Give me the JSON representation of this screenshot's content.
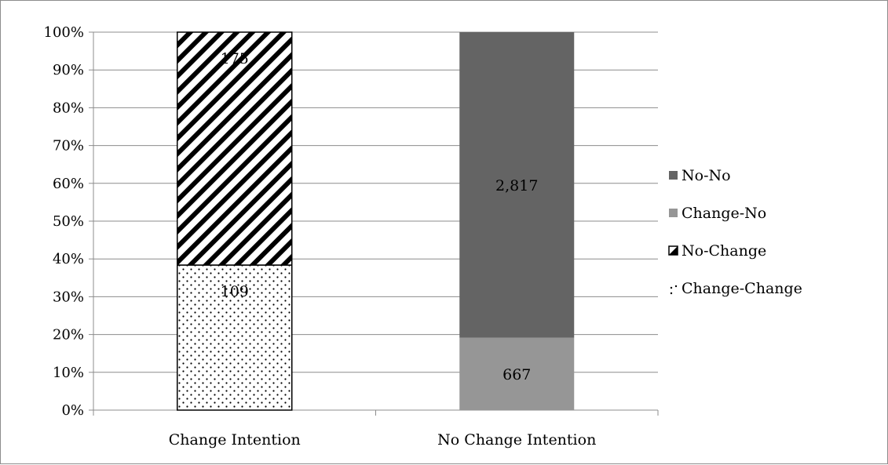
{
  "chart_data": {
    "type": "bar",
    "stacked": "percent",
    "categories": [
      "Change Intention",
      "No Change Intention"
    ],
    "series": [
      {
        "name": "Change-Change",
        "values": [
          109,
          0
        ],
        "labels": [
          "109",
          ""
        ],
        "color": "#ffffff",
        "pattern": "dots"
      },
      {
        "name": "No-Change",
        "values": [
          175,
          0
        ],
        "labels": [
          "175",
          ""
        ],
        "color": "#ffffff",
        "pattern": "diagonal-stripes"
      },
      {
        "name": "Change-No",
        "values": [
          0,
          667
        ],
        "labels": [
          "",
          "667"
        ],
        "color": "#969696",
        "pattern": "solid"
      },
      {
        "name": "No-No",
        "values": [
          0,
          2817
        ],
        "labels": [
          "",
          "2,817"
        ],
        "color": "#646464",
        "pattern": "solid"
      }
    ],
    "y_ticks": [
      "0%",
      "10%",
      "20%",
      "30%",
      "40%",
      "50%",
      "60%",
      "70%",
      "80%",
      "90%",
      "100%"
    ],
    "ylim": [
      0,
      100
    ],
    "grid": true,
    "legend_position": "right",
    "legend_order": [
      "No-No",
      "Change-No",
      "No-Change",
      "Change-Change"
    ]
  }
}
